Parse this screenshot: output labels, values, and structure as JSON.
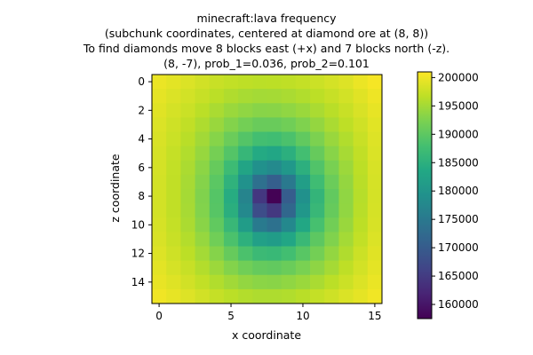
{
  "chart_data": {
    "type": "heatmap",
    "title_lines": [
      "minecraft:lava frequency",
      "(subchunk coordinates, centered at diamond ore at (8, 8))",
      "To find diamonds move 8 blocks east (+x) and 7 blocks north (-z).",
      "(8, -7), prob_1=0.036, prob_2=0.101"
    ],
    "xlabel": "x coordinate",
    "ylabel": "z coordinate",
    "xlim": [
      -0.5,
      15.5
    ],
    "ylim": [
      15.5,
      -0.5
    ],
    "x_ticks": [
      0,
      5,
      10,
      15
    ],
    "y_ticks": [
      0,
      2,
      4,
      6,
      8,
      10,
      12,
      14
    ],
    "colormap": "viridis",
    "colorbar": {
      "vmin": 157500,
      "vmax": 201000,
      "ticks": [
        160000,
        165000,
        170000,
        175000,
        180000,
        185000,
        190000,
        195000,
        200000
      ],
      "tick_labels": [
        "160000",
        "165000",
        "170000",
        "175000",
        "180000",
        "185000",
        "190000",
        "195000",
        "200000"
      ]
    },
    "rows": 16,
    "cols": 16,
    "values": [
      [
        199800,
        199200,
        198700,
        198000,
        197400,
        197000,
        196700,
        196500,
        196600,
        196800,
        197100,
        197600,
        198200,
        198800,
        199800,
        200500
      ],
      [
        199400,
        198700,
        198100,
        197300,
        196500,
        195800,
        195300,
        195000,
        195100,
        195400,
        195900,
        196600,
        197300,
        198100,
        199000,
        200000
      ],
      [
        199000,
        198200,
        197500,
        196500,
        195400,
        194400,
        193700,
        193200,
        193300,
        193700,
        194400,
        195400,
        196400,
        197400,
        198500,
        199500
      ],
      [
        198700,
        197800,
        196900,
        195700,
        194300,
        192900,
        191700,
        190900,
        190900,
        191500,
        192600,
        194000,
        195400,
        196700,
        197900,
        199100
      ],
      [
        198500,
        197500,
        196400,
        194900,
        193100,
        191100,
        189200,
        187800,
        187500,
        188500,
        190300,
        192400,
        194300,
        195900,
        197400,
        198800
      ],
      [
        198300,
        197200,
        195900,
        194200,
        191900,
        189200,
        186300,
        183900,
        183200,
        184900,
        187800,
        190700,
        193200,
        195200,
        196900,
        198600
      ],
      [
        198200,
        197000,
        195500,
        193500,
        190700,
        187100,
        182900,
        179200,
        178000,
        180600,
        185000,
        189000,
        192100,
        194500,
        196600,
        198400
      ],
      [
        198100,
        196900,
        195200,
        193000,
        189800,
        185400,
        179500,
        173500,
        170500,
        175000,
        181800,
        187300,
        191100,
        194000,
        196400,
        198300
      ],
      [
        198100,
        196900,
        195100,
        192700,
        189300,
        184300,
        177000,
        164500,
        157600,
        170200,
        179200,
        185900,
        190400,
        193700,
        196200,
        198200
      ],
      [
        198100,
        196900,
        195200,
        192800,
        189500,
        184800,
        177800,
        167700,
        164600,
        172000,
        180400,
        186500,
        190700,
        193800,
        196300,
        198300
      ],
      [
        198300,
        197100,
        195500,
        193300,
        190300,
        186500,
        181300,
        175200,
        173600,
        177600,
        183500,
        188100,
        191600,
        194300,
        196600,
        198400
      ],
      [
        198500,
        197400,
        196000,
        194100,
        191500,
        188500,
        185100,
        182000,
        181300,
        183300,
        186700,
        190000,
        192700,
        195000,
        197000,
        198700
      ],
      [
        198800,
        197800,
        196600,
        195000,
        193000,
        190700,
        188500,
        186900,
        186600,
        187700,
        189600,
        191700,
        193900,
        195800,
        197600,
        199000
      ],
      [
        199200,
        198300,
        197300,
        196000,
        194500,
        192900,
        191500,
        190600,
        190400,
        191000,
        192200,
        193600,
        195100,
        196700,
        198100,
        199300
      ],
      [
        199600,
        198900,
        198000,
        197000,
        195900,
        194800,
        193900,
        193400,
        193300,
        193700,
        194400,
        195400,
        196500,
        197600,
        198700,
        199700
      ],
      [
        200100,
        199500,
        198800,
        198000,
        197200,
        196500,
        196000,
        195700,
        195700,
        195900,
        196400,
        197100,
        197800,
        198600,
        199400,
        200200
      ]
    ]
  }
}
